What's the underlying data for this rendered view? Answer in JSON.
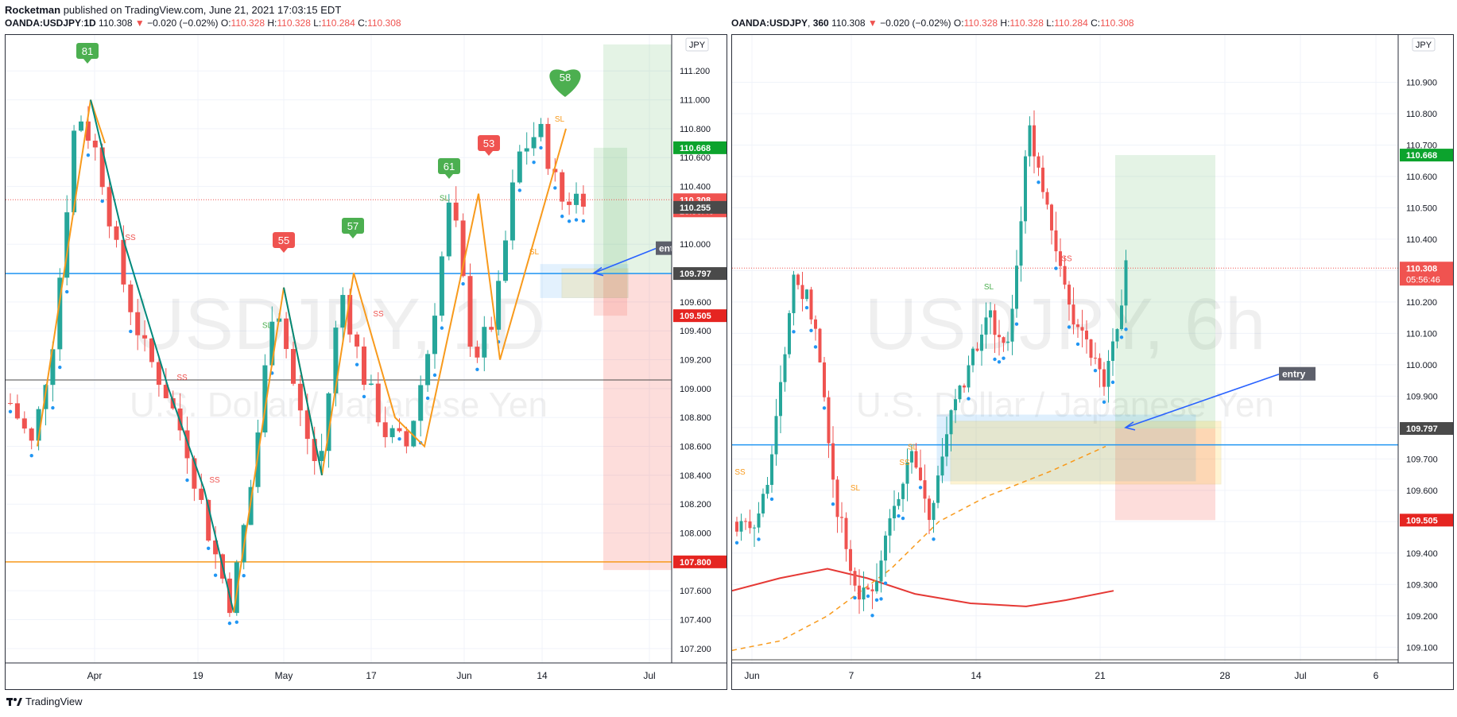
{
  "header": {
    "author": "Rocketman",
    "published_text": "published on TradingView.com, June 21, 2021 17:03:15 EDT"
  },
  "footer": {
    "brand": "TradingView"
  },
  "colors": {
    "up": "#26a69a",
    "down": "#ef5350",
    "zigzag_orange": "#f89a1c",
    "zigzag_teal": "#00897b",
    "level_blue": "#2196f3",
    "level_orange": "#f89a1c",
    "tp_green": "#0ca32d",
    "sl_red": "#e52521",
    "price_red": "#f05350"
  },
  "chart_data": [
    {
      "id": "left",
      "type": "candlestick",
      "symbol": "OANDA:USDJPY",
      "interval": "1D",
      "change": "−0.020 (−0.02%)",
      "ohlc": {
        "o_label": "O:",
        "o": "110.328",
        "h_label": "H:",
        "h": "110.328",
        "l_label": "L:",
        "l": "110.284",
        "c_label": "C:",
        "c": "110.308"
      },
      "last": "110.308",
      "watermark": "USDJPY, 1D",
      "watermark_sub": "U.S. Dollar / Japanese Yen",
      "currency": "JPY",
      "ylim": [
        107.1,
        111.35
      ],
      "y_ticks": [
        "111.200",
        "111.000",
        "110.800",
        "110.600",
        "110.400",
        "110.000",
        "109.800",
        "109.600",
        "109.400",
        "109.200",
        "109.000",
        "108.800",
        "108.600",
        "108.400",
        "108.200",
        "108.000",
        "107.800",
        "107.600",
        "107.400",
        "107.200"
      ],
      "x_ticks": [
        "Apr",
        "19",
        "May",
        "17",
        "Jun",
        "14",
        "Jul"
      ],
      "price_labels": [
        {
          "text": "110.668",
          "value": 110.668,
          "color": "#0ca32d"
        },
        {
          "text": "110.308",
          "value": 110.308,
          "color": "#f05350",
          "sub": "23:56:46"
        },
        {
          "text": "110.255",
          "value": 110.255,
          "color": "#4a4a4a"
        },
        {
          "text": "109.797",
          "value": 109.797,
          "color": "#4a4a4a"
        },
        {
          "text": "109.505",
          "value": 109.505,
          "color": "#e52521"
        },
        {
          "text": "107.800",
          "value": 107.8,
          "color": "#e52521"
        }
      ],
      "levels": [
        {
          "value": 109.797,
          "color": "#2196f3"
        },
        {
          "value": 109.06,
          "color": "#4a4a4a"
        },
        {
          "value": 107.8,
          "color": "#f89a1c"
        }
      ],
      "badges": [
        {
          "text": "81",
          "kind": "green-flag"
        },
        {
          "text": "55",
          "kind": "red-flag"
        },
        {
          "text": "57",
          "kind": "green-flag"
        },
        {
          "text": "61",
          "kind": "green-flag"
        },
        {
          "text": "53",
          "kind": "red-flag"
        },
        {
          "text": "58",
          "kind": "green-heart"
        }
      ],
      "signals": [
        "SS",
        "SS",
        "SS",
        "SL",
        "SS",
        "SL",
        "SL",
        "SL"
      ],
      "entry_label": "entry",
      "position": {
        "entry": 109.797,
        "take_profit": 110.668,
        "stop_loss": 109.505
      }
    },
    {
      "id": "right",
      "type": "candlestick",
      "symbol": "OANDA:USDJPY",
      "interval": "360",
      "change": "−0.020 (−0.02%)",
      "ohlc": {
        "o_label": "O:",
        "o": "110.328",
        "h_label": "H:",
        "h": "110.328",
        "l_label": "L:",
        "l": "110.284",
        "c_label": "C:",
        "c": "110.308"
      },
      "last": "110.308",
      "watermark": "USDJPY, 6h",
      "watermark_sub": "U.S. Dollar / Japanese Yen",
      "currency": "JPY",
      "ylim": [
        109.05,
        111.0
      ],
      "y_ticks": [
        "110.900",
        "110.800",
        "110.700",
        "110.600",
        "110.500",
        "110.400",
        "110.300",
        "110.200",
        "110.100",
        "110.000",
        "109.900",
        "109.800",
        "109.700",
        "109.600",
        "109.500",
        "109.400",
        "109.300",
        "109.200",
        "109.100"
      ],
      "x_ticks": [
        "Jun",
        "7",
        "14",
        "21",
        "28",
        "Jul",
        "6"
      ],
      "price_labels": [
        {
          "text": "110.668",
          "value": 110.668,
          "color": "#0ca32d"
        },
        {
          "text": "110.308",
          "value": 110.308,
          "color": "#f05350",
          "sub": "05:56:46"
        },
        {
          "text": "109.797",
          "value": 109.797,
          "color": "#4a4a4a"
        },
        {
          "text": "109.505",
          "value": 109.505,
          "color": "#e52521"
        }
      ],
      "levels": [
        {
          "value": 109.745,
          "color": "#2196f3"
        },
        {
          "value": 109.06,
          "color": "#4a4a4a"
        }
      ],
      "signals": [
        "SS",
        "SL",
        "SL",
        "SS",
        "SL",
        "SS"
      ],
      "entry_label": "entry",
      "position": {
        "entry": 109.797,
        "take_profit": 110.668,
        "stop_loss": 109.505
      }
    }
  ]
}
